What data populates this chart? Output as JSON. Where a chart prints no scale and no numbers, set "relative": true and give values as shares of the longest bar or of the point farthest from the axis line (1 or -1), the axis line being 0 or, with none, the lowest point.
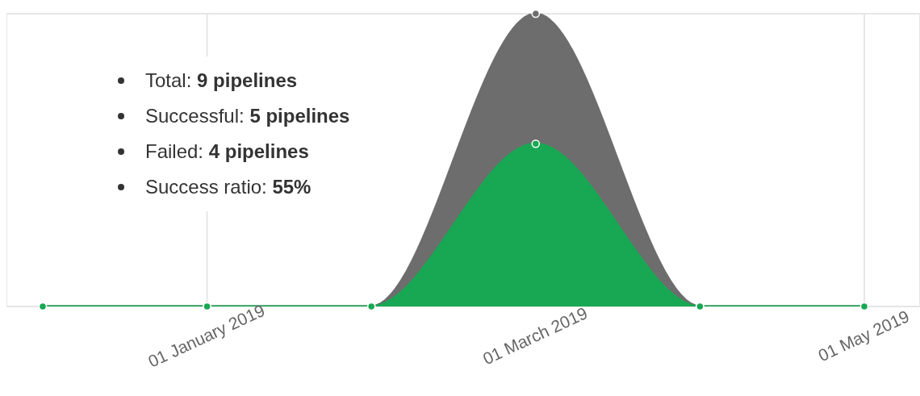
{
  "chart_data": {
    "type": "area",
    "relative": true,
    "categories": [
      null,
      "01 January 2019",
      null,
      "01 March 2019",
      null,
      "01 May 2019"
    ],
    "series": [
      {
        "color": "#6d6d6d",
        "values": [
          0,
          0,
          0,
          1,
          0,
          0
        ]
      },
      {
        "color": "#18a853",
        "values": [
          0,
          0,
          0,
          0.556,
          0,
          0
        ]
      }
    ],
    "grid": true,
    "marker": "circle",
    "annotations": [
      "Total: 9 pipelines",
      "Successful: 5 pipelines",
      "Failed: 4 pipelines",
      "Success ratio: 55%"
    ]
  }
}
